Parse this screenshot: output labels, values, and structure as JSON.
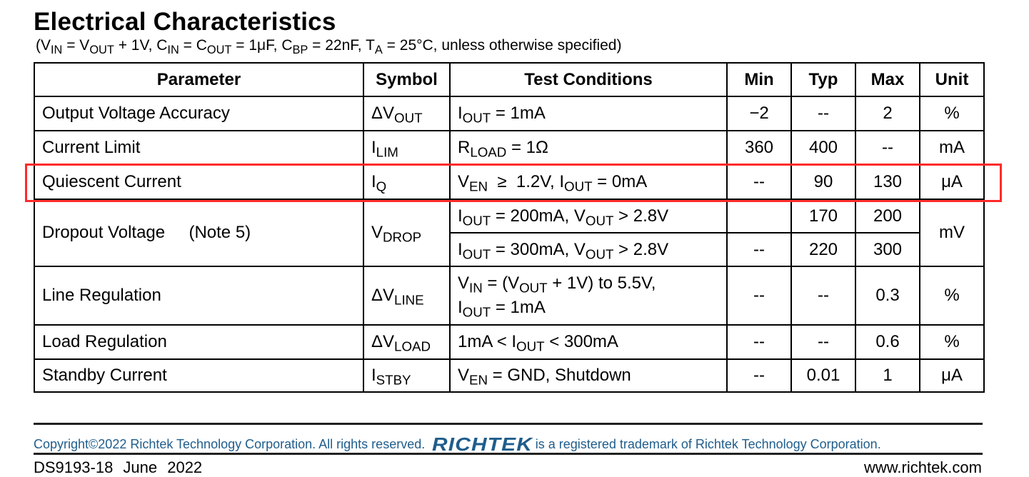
{
  "title": "Electrical Characteristics",
  "subtitle": {
    "open": "(V",
    "vin_sub": "IN",
    "eq1": " = V",
    "vout_sub": "OUT",
    "p1": " + 1V, C",
    "cin_sub": "IN",
    "eq2": " = C",
    "cout_sub": "OUT",
    "p2": " = 1μF, C",
    "cbp_sub": "BP",
    "p3": " = 22nF, T",
    "ta_sub": "A",
    "p4": " = 25°C, unless otherwise specified)"
  },
  "table": {
    "headers": [
      "Parameter",
      "Symbol",
      "Test Conditions",
      "Min",
      "Typ",
      "Max",
      "Unit"
    ],
    "rows": [
      {
        "parameter": "Output Voltage Accuracy",
        "sym": "ΔV",
        "sym_sub": "OUT",
        "cond_pre": "I",
        "cond_sub": "OUT",
        "cond_post": " = 1mA",
        "min": "−2",
        "typ": "--",
        "max": "2",
        "unit": "%"
      },
      {
        "parameter": "Current Limit",
        "sym": "I",
        "sym_sub": "LIM",
        "cond_pre": "R",
        "cond_sub": "LOAD",
        "cond_post": " = 1Ω",
        "min": "360",
        "typ": "400",
        "max": "--",
        "unit": "mA"
      },
      {
        "parameter": "Quiescent Current",
        "sym": "I",
        "sym_sub": "Q",
        "cond_pre": "V",
        "cond_sub": "EN",
        "cond_mid": "  ≥  1.2V, I",
        "cond_sub2": "OUT",
        "cond_post": " = 0mA",
        "min": "--",
        "typ": "90",
        "max": "130",
        "unit": "μA"
      },
      {
        "parameter": "Dropout Voltage",
        "note": "(Note 5)",
        "sym": "V",
        "sym_sub": "DROP",
        "cond_a_pre": "I",
        "cond_a_sub": "OUT",
        "cond_a_mid": " = 200mA, V",
        "cond_a_sub2": "OUT",
        "cond_a_post": " > 2.8V",
        "cond_b_pre": "I",
        "cond_b_sub": "OUT",
        "cond_b_mid": " = 300mA, V",
        "cond_b_sub2": "OUT",
        "cond_b_post": " > 2.8V",
        "min_a": "",
        "typ_a": "170",
        "max_a": "200",
        "min_b": "--",
        "typ_b": "220",
        "max_b": "300",
        "unit": "mV"
      },
      {
        "parameter": "Line Regulation",
        "sym": "ΔV",
        "sym_sub": "LINE",
        "cond_l1_pre": "V",
        "cond_l1_sub": "IN",
        "cond_l1_mid": " = (V",
        "cond_l1_sub2": "OUT",
        "cond_l1_post": " + 1V) to 5.5V,",
        "cond_l2_pre": "I",
        "cond_l2_sub": "OUT",
        "cond_l2_post": " = 1mA",
        "min": "--",
        "typ": "--",
        "max": "0.3",
        "unit": "%"
      },
      {
        "parameter": "Load Regulation",
        "sym": "ΔV",
        "sym_sub": "LOAD",
        "cond_pre": "1mA < I",
        "cond_sub": "OUT",
        "cond_post": " < 300mA",
        "min": "--",
        "typ": "--",
        "max": "0.6",
        "unit": "%"
      },
      {
        "parameter": "Standby Current",
        "sym": "I",
        "sym_sub": "STBY",
        "cond_pre": "V",
        "cond_sub": "EN",
        "cond_post": " = GND, Shutdown",
        "min": "--",
        "typ": "0.01",
        "max": "1",
        "unit": "μA"
      }
    ]
  },
  "highlight_color": "#ff2a2a",
  "footer": {
    "copyright_text": "Copyright©2022 Richtek Technology Corporation. All rights reserved.",
    "logo_text": "RICHTEK",
    "trademark_text": "is a registered trademark of Richtek Technology Corporation.",
    "doc_id": "DS9193-18   June  2022",
    "website": "www.richtek.com",
    "brand_color": "#1f5d8c"
  }
}
